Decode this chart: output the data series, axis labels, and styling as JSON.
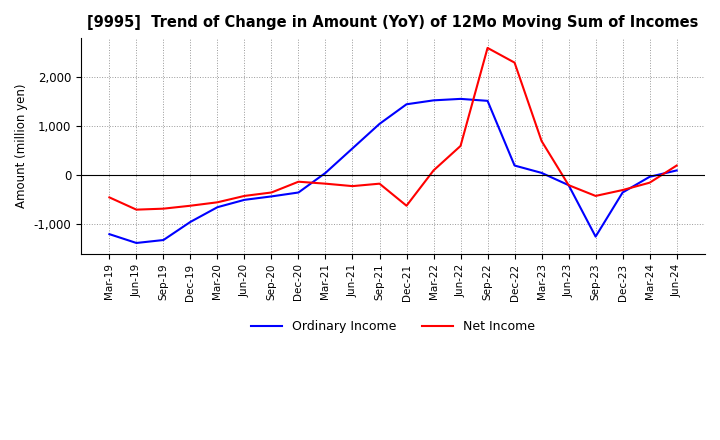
{
  "title": "[9995]  Trend of Change in Amount (YoY) of 12Mo Moving Sum of Incomes",
  "ylabel": "Amount (million yen)",
  "ylim": [
    -1600,
    2800
  ],
  "yticks": [
    -1000,
    0,
    1000,
    2000
  ],
  "legend_labels": [
    "Ordinary Income",
    "Net Income"
  ],
  "line_colors": [
    "blue",
    "red"
  ],
  "x_labels": [
    "Mar-19",
    "Jun-19",
    "Sep-19",
    "Dec-19",
    "Mar-20",
    "Jun-20",
    "Sep-20",
    "Dec-20",
    "Mar-21",
    "Jun-21",
    "Sep-21",
    "Dec-21",
    "Mar-22",
    "Jun-22",
    "Sep-22",
    "Dec-22",
    "Mar-23",
    "Jun-23",
    "Sep-23",
    "Dec-23",
    "Mar-24",
    "Jun-24"
  ],
  "ordinary_income": [
    -1200,
    -1380,
    -1320,
    -950,
    -650,
    -500,
    -430,
    -350,
    50,
    550,
    1050,
    1450,
    1530,
    1560,
    1520,
    200,
    50,
    -200,
    -1250,
    -350,
    -30,
    100
  ],
  "net_income": [
    -450,
    -700,
    -680,
    -620,
    -550,
    -420,
    -350,
    -130,
    -170,
    -220,
    -170,
    -620,
    100,
    600,
    2600,
    2300,
    700,
    -200,
    -420,
    -300,
    -150,
    200
  ]
}
